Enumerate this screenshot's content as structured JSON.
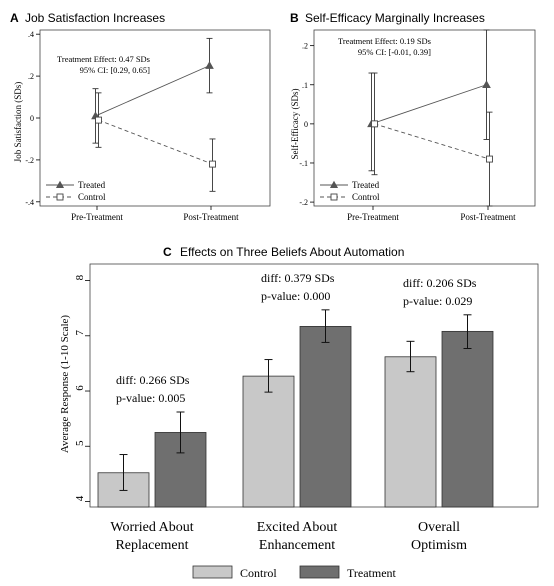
{
  "chart_data": [
    {
      "type": "line",
      "panel_letter": "A",
      "title": "Job Satisfaction Increases",
      "ylabel": "Job Satisfaction (SDs)",
      "ylim": [
        -0.42,
        0.42
      ],
      "yticks": [
        -0.4,
        -0.2,
        0,
        0.2,
        0.4
      ],
      "ytick_labels": [
        "-.4",
        "-.2",
        "0",
        ".2",
        ".4"
      ],
      "categories": [
        "Pre-Treatment",
        "Post-Treatment"
      ],
      "series": [
        {
          "name": "Treated",
          "marker": "triangle",
          "style": "solid",
          "values": [
            0.01,
            0.25
          ],
          "ci_low": [
            -0.12,
            0.12
          ],
          "ci_high": [
            0.14,
            0.38
          ]
        },
        {
          "name": "Control",
          "marker": "square",
          "style": "dashed",
          "values": [
            -0.01,
            -0.22
          ],
          "ci_low": [
            -0.14,
            -0.35
          ],
          "ci_high": [
            0.12,
            -0.1
          ]
        }
      ],
      "annotation": [
        "Treatment Effect:    0.47 SDs",
        "95% CI:  [0.29, 0.65]"
      ],
      "legend_position": "bottom-left",
      "grid": false
    },
    {
      "type": "line",
      "panel_letter": "B",
      "title": "Self-Efficacy Marginally Increases",
      "ylabel": "Self-Efficacy (SDs)",
      "ylim": [
        -0.21,
        0.24
      ],
      "yticks": [
        -0.2,
        -0.1,
        0,
        0.1,
        0.2
      ],
      "ytick_labels": [
        "-.2",
        "-.1",
        "0",
        ".1",
        ".2"
      ],
      "categories": [
        "Pre-Treatment",
        "Post-Treatment"
      ],
      "series": [
        {
          "name": "Treated",
          "marker": "triangle",
          "style": "solid",
          "values": [
            0.0,
            0.1
          ],
          "ci_low": [
            -0.12,
            -0.04
          ],
          "ci_high": [
            0.13,
            0.24
          ]
        },
        {
          "name": "Control",
          "marker": "square",
          "style": "dashed",
          "values": [
            0.0,
            -0.09
          ],
          "ci_low": [
            -0.13,
            -0.21
          ],
          "ci_high": [
            0.13,
            0.03
          ]
        }
      ],
      "annotation": [
        "Treatment Effect:    0.19 SDs",
        "95% CI:  [-0.01, 0.39]"
      ],
      "legend_position": "bottom-left",
      "grid": false
    },
    {
      "type": "bar",
      "panel_letter": "C",
      "title": "Effects on Three Beliefs About Automation",
      "ylabel": "Average Response (1-10 Scale)",
      "ylim": [
        3.9,
        8.3
      ],
      "yticks": [
        4,
        5,
        6,
        7,
        8
      ],
      "ytick_labels": [
        "4",
        "5",
        "6",
        "7",
        "8"
      ],
      "categories": [
        [
          "Worried About",
          "Replacement"
        ],
        [
          "Excited About",
          "Enhancement"
        ],
        [
          "Overall",
          "Optimism"
        ]
      ],
      "series": [
        {
          "name": "Control",
          "color": "#c8c8c8",
          "values": [
            4.52,
            6.27,
            6.62
          ],
          "ci_low": [
            4.2,
            5.98,
            6.35
          ],
          "ci_high": [
            4.85,
            6.57,
            6.9
          ]
        },
        {
          "name": "Treatment",
          "color": "#6f6f6f",
          "values": [
            5.25,
            7.17,
            7.08
          ],
          "ci_low": [
            4.88,
            6.88,
            6.77
          ],
          "ci_high": [
            5.62,
            7.47,
            7.38
          ]
        }
      ],
      "annotations": [
        [
          "diff: 0.266 SDs",
          "p-value: 0.005"
        ],
        [
          "diff: 0.379 SDs",
          "p-value: 0.000"
        ],
        [
          "diff: 0.206 SDs",
          "p-value: 0.029"
        ]
      ],
      "legend_position": "bottom",
      "grid": false
    }
  ]
}
